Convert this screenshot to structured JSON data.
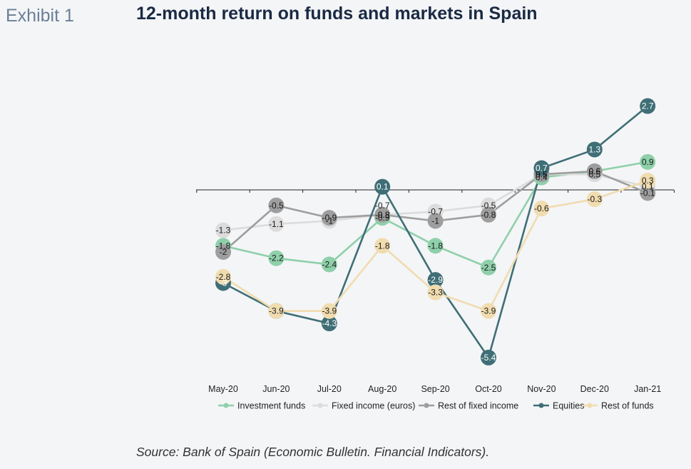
{
  "header": {
    "exhibit": "Exhibit 1",
    "title": "12-month return on funds and markets in Spain"
  },
  "source": "Source: Bank of Spain (Economic Bulletin. Financial Indicators).",
  "chart_data": {
    "type": "line",
    "categories": [
      "May-20",
      "Jun-20",
      "Jul-20",
      "Aug-20",
      "Sep-20",
      "Oct-20",
      "Nov-20",
      "Dec-20",
      "Jan-21"
    ],
    "ylim": [
      -6,
      3
    ],
    "grid": false,
    "legend": "bottom",
    "series": [
      {
        "name": "Investment funds",
        "color": "#8fd0aa",
        "values": [
          -1.8,
          -2.2,
          -2.4,
          -0.9,
          -1.8,
          -2.5,
          0.4,
          0.6,
          0.9
        ],
        "labels": [
          "-1.8",
          "-2.2",
          "-2.4",
          "-0.9",
          "-1.8",
          "-2.5",
          "0.4",
          "0.6",
          "0.9"
        ]
      },
      {
        "name": "Fixed income (euros)",
        "color": "#dcdcdc",
        "values": [
          -1.3,
          -1.1,
          -1.0,
          -0.8,
          -0.7,
          -0.5,
          0.5,
          0.5,
          0.1
        ],
        "labels": [
          "-1.3",
          "-1.1",
          "-1",
          "-0.8",
          "-0.7",
          "-0.5",
          "0.5",
          "0.5",
          "0.1"
        ]
      },
      {
        "name": "Rest of fixed income",
        "color": "#9e9e9e",
        "values": [
          -2.0,
          -0.5,
          -0.9,
          -0.8,
          -1.0,
          -0.8,
          0.5,
          0.6,
          -0.1
        ],
        "labels": [
          "-2",
          "-0.5",
          "-0.9",
          "-0.8",
          "-1",
          "-0.8",
          "0.5",
          "0.6",
          "-0.1"
        ]
      },
      {
        "name": "Equities",
        "color": "#3f6e76",
        "values": [
          -3.0,
          -3.9,
          -4.3,
          0.1,
          -2.9,
          -5.4,
          0.7,
          1.3,
          2.7
        ],
        "labels": [
          "-3",
          "-3.9",
          "-4.3",
          "0.1",
          "-2.9",
          "-5.4",
          "0.7",
          "1.3",
          "2.7"
        ]
      },
      {
        "name": "Rest of funds",
        "color": "#f0dcaf",
        "values": [
          -2.8,
          -3.9,
          -3.9,
          -1.8,
          -3.3,
          -3.9,
          -0.6,
          -0.3,
          0.3
        ],
        "labels": [
          "-2.8",
          "-3.9",
          "-3.9",
          "-1.8",
          "-3.3",
          "-3.9",
          "-0.6",
          "-0.3",
          "0.3"
        ]
      }
    ],
    "annotations": [
      "-0.7"
    ]
  }
}
